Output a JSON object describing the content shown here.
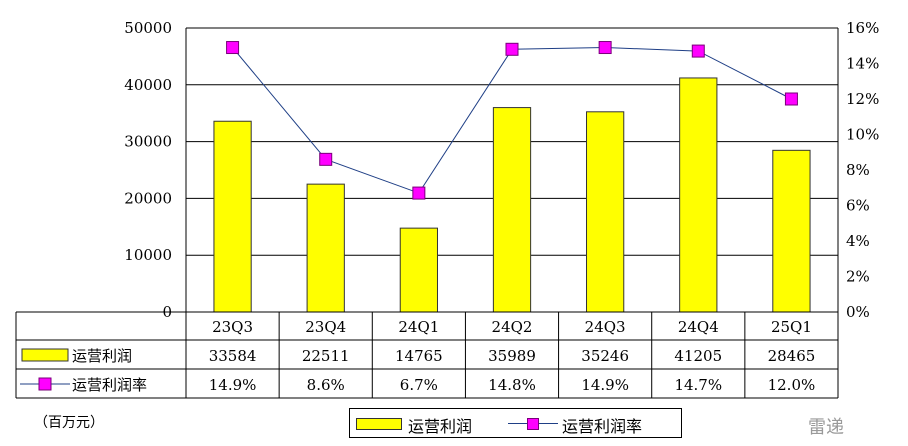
{
  "chart_data": {
    "type": "bar",
    "categories": [
      "23Q3",
      "23Q4",
      "24Q1",
      "24Q2",
      "24Q3",
      "24Q4",
      "25Q1"
    ],
    "series": [
      {
        "name": "运营利润",
        "type": "bar",
        "axis": "left",
        "values": [
          33584,
          22511,
          14765,
          35989,
          35246,
          41205,
          28465
        ],
        "labels": [
          "33584",
          "22511",
          "14765",
          "35989",
          "35246",
          "41205",
          "28465"
        ]
      },
      {
        "name": "运营利润率",
        "type": "line",
        "axis": "right",
        "values": [
          14.9,
          8.6,
          6.7,
          14.8,
          14.9,
          14.7,
          12.0
        ],
        "labels": [
          "14.9%",
          "8.6%",
          "6.7%",
          "14.8%",
          "14.9%",
          "14.7%",
          "12.0%"
        ]
      }
    ],
    "y_left": {
      "range": [
        0,
        50000
      ],
      "ticks": [
        "0",
        "10000",
        "20000",
        "30000",
        "40000",
        "50000"
      ]
    },
    "y_right": {
      "range": [
        0,
        16
      ],
      "ticks": [
        "0%",
        "2%",
        "4%",
        "6%",
        "8%",
        "10%",
        "12%",
        "14%",
        "16%"
      ]
    },
    "unit_label": "（百万元）",
    "grid": true,
    "legend_position": "bottom",
    "data_table": true,
    "colors": {
      "bar": "#ffff00",
      "bar_border": "#333333",
      "line": "#1f3f86",
      "marker": "#ff00ff",
      "grid": "#000000"
    }
  },
  "watermark": "雷递"
}
